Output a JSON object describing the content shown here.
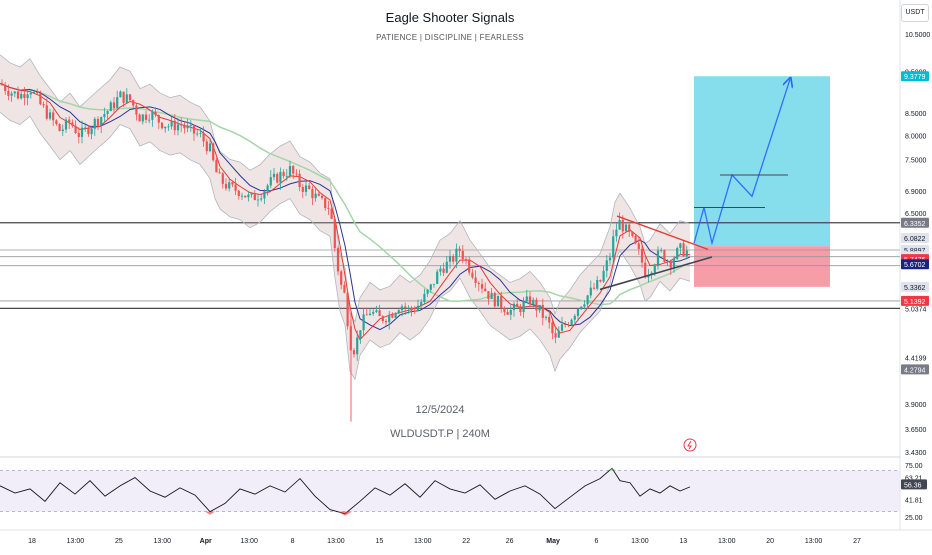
{
  "header": {
    "title": "Eagle Shooter Signals",
    "subtitle": "PATIENCE  |  DISCIPLINE  |  FEARLESS"
  },
  "watermark": {
    "date": "12/5/2024",
    "symbol": "WLDUSDT.P | 240M"
  },
  "currency": "USDT",
  "colors": {
    "up": "#26a69a",
    "down": "#ef5350",
    "target_zone": "#7fdbea",
    "stop_zone": "#f48c98",
    "ma_fast": "#e53935",
    "ma_slow": "#283593",
    "ma_long": "#a5d6a7",
    "rsi_line": "#131722",
    "rsi_band": "#ede7f6"
  },
  "chart_data": [
    {
      "type": "candlestick",
      "symbol": "WLDUSDT.P",
      "timeframe": "240M",
      "y_scale": "log",
      "price_range": [
        3.43,
        10.5
      ],
      "price_axis_ticks": [
        "10.5000",
        "9.5000",
        "8.5000",
        "8.0000",
        "7.5000",
        "6.9000",
        "6.5000",
        "5.8897",
        "5.7855",
        "5.6476",
        "5.3654",
        "5.0374",
        "4.4199",
        "3.9000",
        "3.6500",
        "3.4300"
      ],
      "time_axis_labels": [
        "18",
        "13:00",
        "25",
        "13:00",
        "Apr",
        "13:00",
        "8",
        "13:00",
        "15",
        "13:00",
        "22",
        "26",
        "May",
        "6",
        "13:00",
        "13",
        "13:00",
        "20",
        "13:00",
        "27"
      ],
      "price_labels": [
        {
          "text": "9.3779",
          "bg": "#00bcd4",
          "fg": "#ffffff"
        },
        {
          "text": "6.3352",
          "bg": "#787b86",
          "fg": "#ffffff"
        },
        {
          "text": "6.0822",
          "bg": "#e0e3eb",
          "fg": "#131722"
        },
        {
          "text": "5.8897",
          "bg": "#e0e3eb",
          "fg": "#131722"
        },
        {
          "text": "51:45",
          "bg": "#e0e3eb",
          "fg": "#131722"
        },
        {
          "text": "5.7911",
          "bg": "#e0e3eb",
          "fg": "#131722"
        },
        {
          "text": "5.7476",
          "bg": "#f23645",
          "fg": "#ffffff"
        },
        {
          "text": "5.6702",
          "bg": "#1a237e",
          "fg": "#ffffff"
        },
        {
          "text": "5.3362",
          "bg": "#e0e3eb",
          "fg": "#131722"
        },
        {
          "text": "5.1392",
          "bg": "#f23645",
          "fg": "#ffffff"
        },
        {
          "text": "4.2794",
          "bg": "#787b86",
          "fg": "#ffffff"
        }
      ],
      "horizontal_levels": [
        6.3352,
        5.8897,
        5.7855,
        5.6476,
        5.1392,
        5.0374
      ],
      "close_path": [
        [
          0,
          9.2
        ],
        [
          10,
          9.0
        ],
        [
          20,
          8.9
        ],
        [
          30,
          9.1
        ],
        [
          40,
          8.7
        ],
        [
          50,
          8.4
        ],
        [
          60,
          8.1
        ],
        [
          70,
          8.3
        ],
        [
          80,
          8.0
        ],
        [
          90,
          8.2
        ],
        [
          100,
          8.4
        ],
        [
          110,
          8.6
        ],
        [
          120,
          8.9
        ],
        [
          130,
          8.8
        ],
        [
          140,
          8.4
        ],
        [
          150,
          8.5
        ],
        [
          160,
          8.3
        ],
        [
          170,
          8.2
        ],
        [
          180,
          8.25
        ],
        [
          190,
          8.1
        ],
        [
          200,
          8.0
        ],
        [
          210,
          7.7
        ],
        [
          215,
          7.3
        ],
        [
          220,
          7.1
        ],
        [
          230,
          6.95
        ],
        [
          240,
          6.9
        ],
        [
          250,
          6.75
        ],
        [
          260,
          6.85
        ],
        [
          270,
          7.05
        ],
        [
          280,
          7.2
        ],
        [
          290,
          7.3
        ],
        [
          300,
          7.0
        ],
        [
          310,
          6.9
        ],
        [
          320,
          6.7
        ],
        [
          330,
          6.6
        ],
        [
          335,
          5.9
        ],
        [
          340,
          5.4
        ],
        [
          345,
          5.2
        ],
        [
          350,
          4.6
        ],
        [
          355,
          4.5
        ],
        [
          360,
          4.8
        ],
        [
          370,
          5.0
        ],
        [
          380,
          4.9
        ],
        [
          390,
          4.95
        ],
        [
          400,
          5.1
        ],
        [
          410,
          5.0
        ],
        [
          420,
          5.1
        ],
        [
          430,
          5.3
        ],
        [
          440,
          5.6
        ],
        [
          450,
          5.7
        ],
        [
          460,
          5.9
        ],
        [
          470,
          5.6
        ],
        [
          480,
          5.4
        ],
        [
          490,
          5.2
        ],
        [
          500,
          5.1
        ],
        [
          510,
          5.0
        ],
        [
          520,
          5.05
        ],
        [
          530,
          5.15
        ],
        [
          540,
          5.0
        ],
        [
          550,
          4.8
        ],
        [
          555,
          4.6
        ],
        [
          560,
          4.75
        ],
        [
          570,
          4.9
        ],
        [
          580,
          5.1
        ],
        [
          590,
          5.25
        ],
        [
          600,
          5.4
        ],
        [
          610,
          5.8
        ],
        [
          615,
          6.2
        ],
        [
          620,
          6.35
        ],
        [
          630,
          6.1
        ],
        [
          640,
          5.8
        ],
        [
          645,
          5.55
        ],
        [
          650,
          5.6
        ],
        [
          660,
          5.85
        ],
        [
          670,
          5.7
        ],
        [
          680,
          5.9
        ],
        [
          690,
          5.85
        ]
      ],
      "projection_path": [
        [
          694,
          6.0
        ],
        [
          704,
          6.6
        ],
        [
          712,
          6.0
        ],
        [
          732,
          7.2
        ],
        [
          752,
          6.8
        ],
        [
          790,
          9.3
        ]
      ],
      "position": {
        "entry": 5.95,
        "target": 9.3779,
        "stop": 5.3362
      }
    },
    {
      "type": "line",
      "name": "RSI",
      "axis_ticks": [
        "75.00",
        "63.21",
        "56.36",
        "41.81",
        "25.00"
      ],
      "bands": [
        70,
        30
      ],
      "range": [
        20,
        80
      ],
      "values": [
        [
          0,
          55
        ],
        [
          15,
          48
        ],
        [
          30,
          52
        ],
        [
          45,
          40
        ],
        [
          60,
          58
        ],
        [
          75,
          47
        ],
        [
          90,
          60
        ],
        [
          105,
          45
        ],
        [
          120,
          55
        ],
        [
          135,
          63
        ],
        [
          150,
          50
        ],
        [
          165,
          44
        ],
        [
          180,
          53
        ],
        [
          195,
          46
        ],
        [
          210,
          30
        ],
        [
          225,
          38
        ],
        [
          240,
          52
        ],
        [
          255,
          47
        ],
        [
          270,
          55
        ],
        [
          285,
          49
        ],
        [
          300,
          62
        ],
        [
          315,
          45
        ],
        [
          330,
          32
        ],
        [
          345,
          28
        ],
        [
          360,
          40
        ],
        [
          375,
          53
        ],
        [
          390,
          46
        ],
        [
          405,
          57
        ],
        [
          420,
          44
        ],
        [
          435,
          60
        ],
        [
          450,
          52
        ],
        [
          465,
          48
        ],
        [
          480,
          56
        ],
        [
          495,
          42
        ],
        [
          510,
          50
        ],
        [
          525,
          55
        ],
        [
          540,
          47
        ],
        [
          555,
          33
        ],
        [
          570,
          44
        ],
        [
          585,
          55
        ],
        [
          600,
          62
        ],
        [
          612,
          72
        ],
        [
          620,
          60
        ],
        [
          630,
          58
        ],
        [
          640,
          45
        ],
        [
          650,
          52
        ],
        [
          660,
          48
        ],
        [
          670,
          55
        ],
        [
          680,
          50
        ],
        [
          690,
          54
        ]
      ]
    }
  ]
}
